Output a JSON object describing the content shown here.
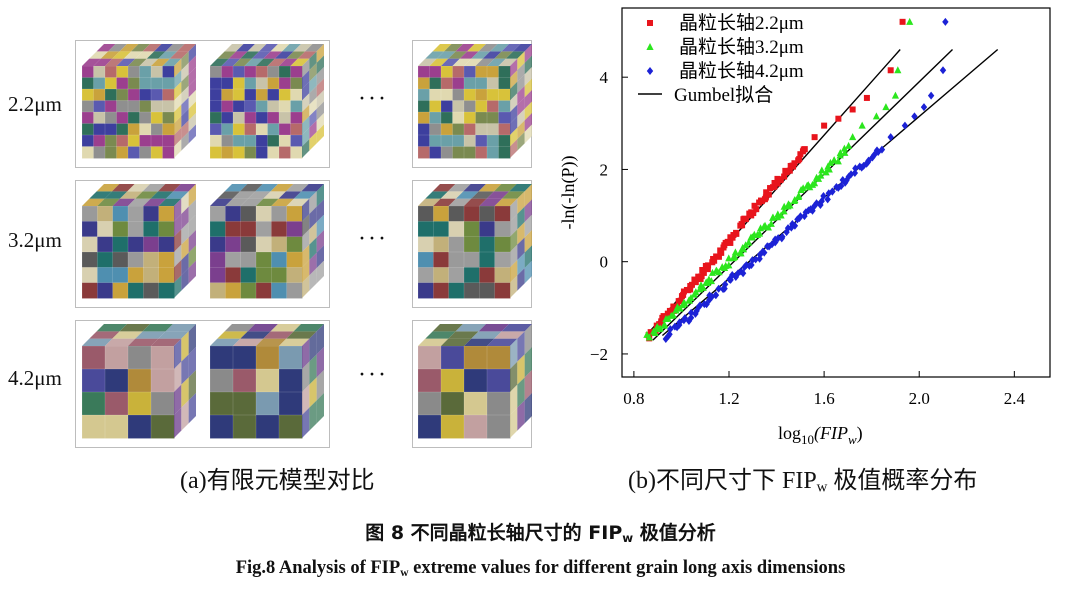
{
  "left_panel": {
    "rows": [
      {
        "label": "2.2μm",
        "colors": [
          "#3d3f9e",
          "#d8c23a",
          "#8f8f8f",
          "#c9a23c",
          "#6aa0a8",
          "#9b3f8e",
          "#2f6f5a",
          "#c8c3a8",
          "#b66a6a",
          "#5a5ab0",
          "#e0d9b0",
          "#7a8a50"
        ]
      },
      {
        "label": "3.2μm",
        "colors": [
          "#3a3a8a",
          "#c9a23c",
          "#9a9a9a",
          "#1f6f6a",
          "#6e8a3f",
          "#7b3f8e",
          "#c2b07a",
          "#4f8fb0",
          "#a0a0a0",
          "#8a3a3a",
          "#d8d0b0",
          "#5a5a5a"
        ]
      },
      {
        "label": "4.2μm",
        "colors": [
          "#c9b23a",
          "#2f3a7a",
          "#8a8a8a",
          "#6a3a8a",
          "#3a7a5a",
          "#b08a3a",
          "#d4c890",
          "#c2a0a0",
          "#7a9ab0",
          "#5a6a3a",
          "#9a5a6a",
          "#4a4a9a"
        ]
      }
    ],
    "ellipsis": "···",
    "caption": "(a)有限元模型对比"
  },
  "right_panel": {
    "caption_prefix": "(b)不同尺寸下 FIP",
    "caption_sub": "w",
    "caption_suffix": " 极值概率分布"
  },
  "figure": {
    "cn_prefix": "图 8  不同晶粒长轴尺寸的 FIP",
    "cn_sub": "w",
    "cn_suffix": " 极值分析",
    "en_prefix": "Fig.8 Analysis of FIP",
    "en_sub": "w",
    "en_suffix": " extreme values for different grain long axis dimensions"
  },
  "chart_data": {
    "type": "scatter",
    "xlabel_prefix": "log",
    "xlabel_sub": "10",
    "xlabel_main": "(FIP",
    "xlabel_main_sub": "w",
    "xlabel_close": ")",
    "ylabel": "-ln(-ln(P))",
    "xlim": [
      0.75,
      2.55
    ],
    "ylim": [
      -2.5,
      5.5
    ],
    "xticks": [
      0.8,
      1.2,
      1.6,
      2.0,
      2.4
    ],
    "xtick_labels": [
      "0.8",
      "1.2",
      "1.6",
      "2.0",
      "2.4"
    ],
    "yticks": [
      -2,
      0,
      2,
      4
    ],
    "ytick_labels": [
      "−2",
      "0",
      "2",
      "4"
    ],
    "grid": false,
    "legend_position": "top-left",
    "series": [
      {
        "name": "晶粒长轴2.2μm",
        "marker": "square",
        "color": "#e8141c",
        "n": 96,
        "x_start": 0.86,
        "x_end": 1.52,
        "y_start": -1.65,
        "y_end": 2.45,
        "tail": [
          [
            1.56,
            2.7
          ],
          [
            1.6,
            2.95
          ],
          [
            1.66,
            3.1
          ],
          [
            1.72,
            3.3
          ],
          [
            1.78,
            3.55
          ],
          [
            1.88,
            4.15
          ],
          [
            1.93,
            5.2
          ]
        ],
        "fit": [
          [
            0.86,
            -1.55
          ],
          [
            1.92,
            4.6
          ]
        ]
      },
      {
        "name": "晶粒长轴3.2μm",
        "marker": "triangle",
        "color": "#2ce61e",
        "n": 96,
        "x_start": 0.86,
        "x_end": 1.7,
        "y_start": -1.65,
        "y_end": 2.45,
        "tail": [
          [
            1.72,
            2.7
          ],
          [
            1.76,
            2.95
          ],
          [
            1.82,
            3.15
          ],
          [
            1.86,
            3.35
          ],
          [
            1.9,
            3.6
          ],
          [
            1.91,
            4.15
          ],
          [
            1.96,
            5.2
          ]
        ],
        "fit": [
          [
            0.88,
            -1.7
          ],
          [
            2.14,
            4.6
          ]
        ]
      },
      {
        "name": "晶粒长轴4.2μm",
        "marker": "diamond",
        "color": "#1c22d6",
        "n": 96,
        "x_start": 0.93,
        "x_end": 1.84,
        "y_start": -1.65,
        "y_end": 2.45,
        "tail": [
          [
            1.88,
            2.7
          ],
          [
            1.94,
            2.95
          ],
          [
            1.98,
            3.15
          ],
          [
            2.02,
            3.35
          ],
          [
            2.05,
            3.6
          ],
          [
            2.1,
            4.15
          ],
          [
            2.11,
            5.2
          ]
        ],
        "fit": [
          [
            0.92,
            -1.6
          ],
          [
            2.33,
            4.6
          ]
        ]
      }
    ],
    "fit_legend": "Gumbel拟合"
  }
}
